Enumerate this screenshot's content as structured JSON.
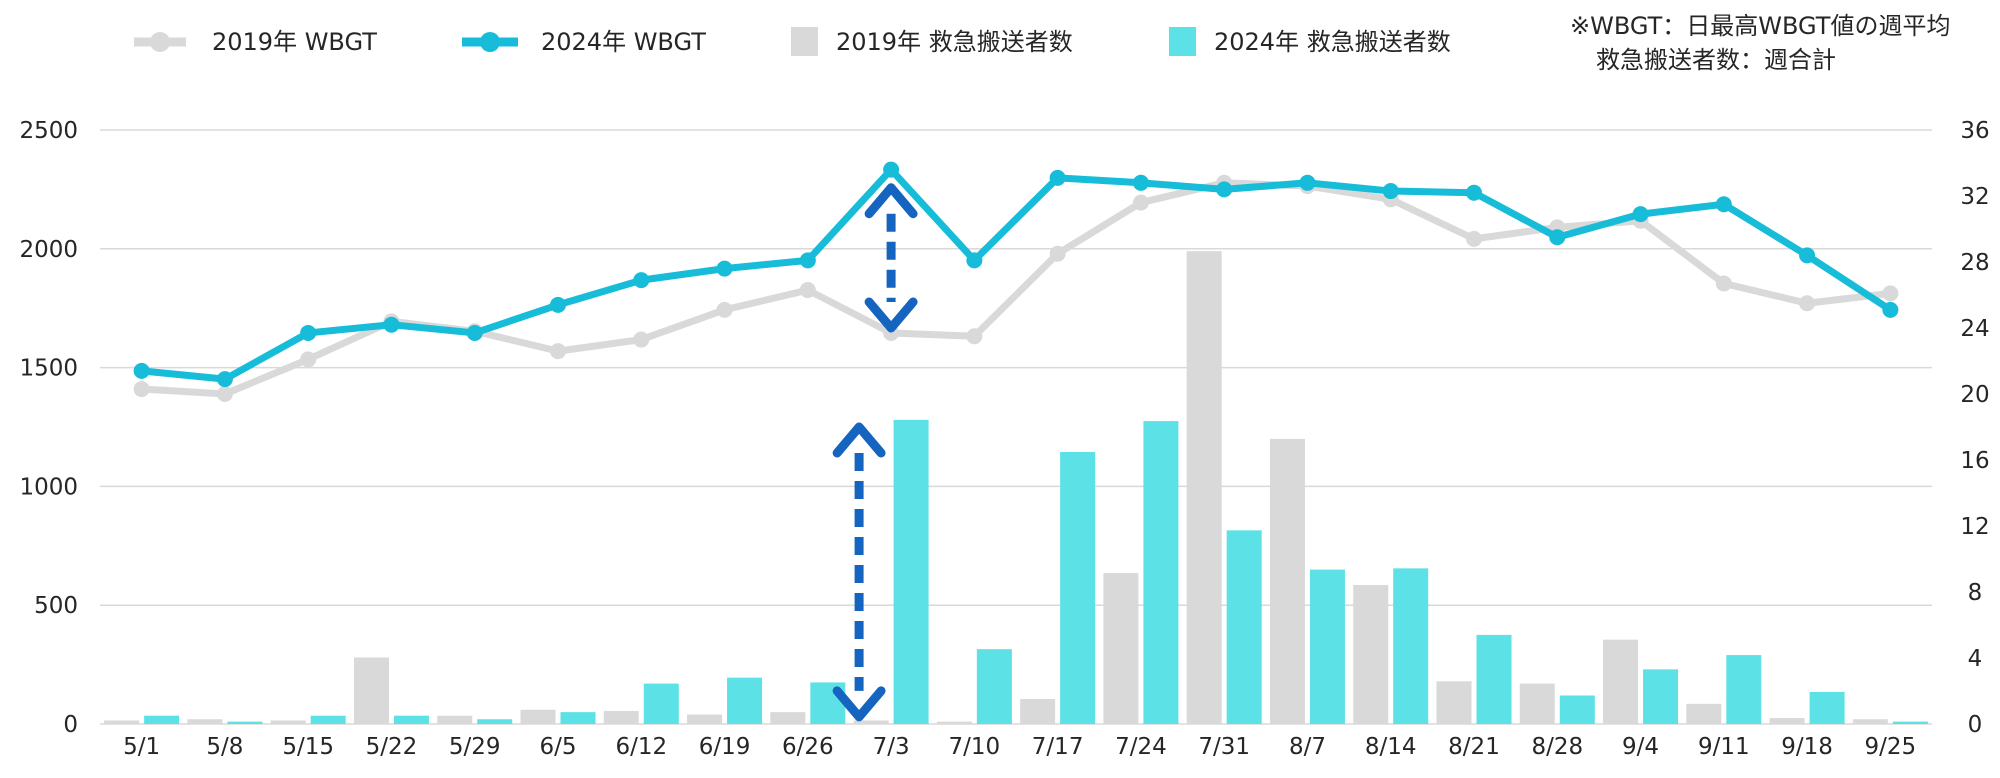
{
  "legend": {
    "wbgt_2019": "2019年 WBGT",
    "wbgt_2024": "2024年 WBGT",
    "amb_2019": "2019年 救急搬送者数",
    "amb_2024": "2024年 救急搬送者数"
  },
  "note": {
    "line1": "※WBGT：日最高WBGT値の週平均",
    "line2": "救急搬送者数：週合計"
  },
  "colors": {
    "wbgt_2019": "#d9d9d9",
    "wbgt_2024": "#17bcd9",
    "bar_2019": "#d9d9d9",
    "bar_2024": "#5ce1e6",
    "arrow": "#1565c0",
    "grid": "#d9d9d9"
  },
  "chart_data": {
    "type": "bar+line",
    "categories": [
      "5/1",
      "5/8",
      "5/15",
      "5/22",
      "5/29",
      "6/5",
      "6/12",
      "6/19",
      "6/26",
      "7/3",
      "7/10",
      "7/17",
      "7/24",
      "7/31",
      "8/7",
      "8/14",
      "8/21",
      "8/28",
      "9/4",
      "9/11",
      "9/18",
      "9/25"
    ],
    "bar_series": [
      {
        "name": "2019年 救急搬送者数",
        "axis": "left",
        "values": [
          15,
          20,
          15,
          280,
          35,
          60,
          55,
          40,
          50,
          15,
          10,
          105,
          635,
          1990,
          1200,
          585,
          180,
          170,
          355,
          85,
          25,
          20
        ]
      },
      {
        "name": "2024年 救急搬送者数",
        "axis": "left",
        "values": [
          35,
          10,
          35,
          35,
          20,
          50,
          170,
          195,
          175,
          1280,
          315,
          1145,
          1275,
          815,
          650,
          655,
          375,
          120,
          230,
          290,
          135,
          10
        ]
      }
    ],
    "line_series": [
      {
        "name": "2019年 WBGT",
        "axis": "right",
        "values": [
          20.3,
          20.0,
          22.1,
          24.4,
          23.8,
          22.6,
          23.3,
          25.1,
          26.3,
          23.7,
          23.5,
          28.5,
          31.6,
          32.8,
          32.6,
          31.8,
          29.4,
          30.1,
          30.5,
          26.7,
          25.5,
          26.1
        ]
      },
      {
        "name": "2024年 WBGT",
        "axis": "right",
        "values": [
          21.4,
          20.9,
          23.7,
          24.2,
          23.7,
          25.4,
          26.9,
          27.6,
          28.1,
          33.6,
          28.1,
          33.1,
          32.8,
          32.4,
          32.8,
          32.3,
          32.2,
          29.5,
          30.9,
          31.5,
          28.4,
          25.1
        ]
      }
    ],
    "left_axis": {
      "min": 0,
      "max": 2500,
      "ticks": [
        0,
        500,
        1000,
        1500,
        2000,
        2500
      ]
    },
    "right_axis": {
      "min": 0,
      "max": 36,
      "ticks": [
        0,
        4,
        8,
        12,
        16,
        20,
        24,
        28,
        32,
        36
      ]
    },
    "grid": true,
    "legend_position": "top",
    "annotations": [
      {
        "type": "double-arrow",
        "category": "7/3",
        "axis": "right",
        "from": 24.0,
        "to": 32.5
      },
      {
        "type": "double-arrow",
        "category": "7/3",
        "axis": "left",
        "from": 30,
        "to": 1250
      }
    ]
  }
}
